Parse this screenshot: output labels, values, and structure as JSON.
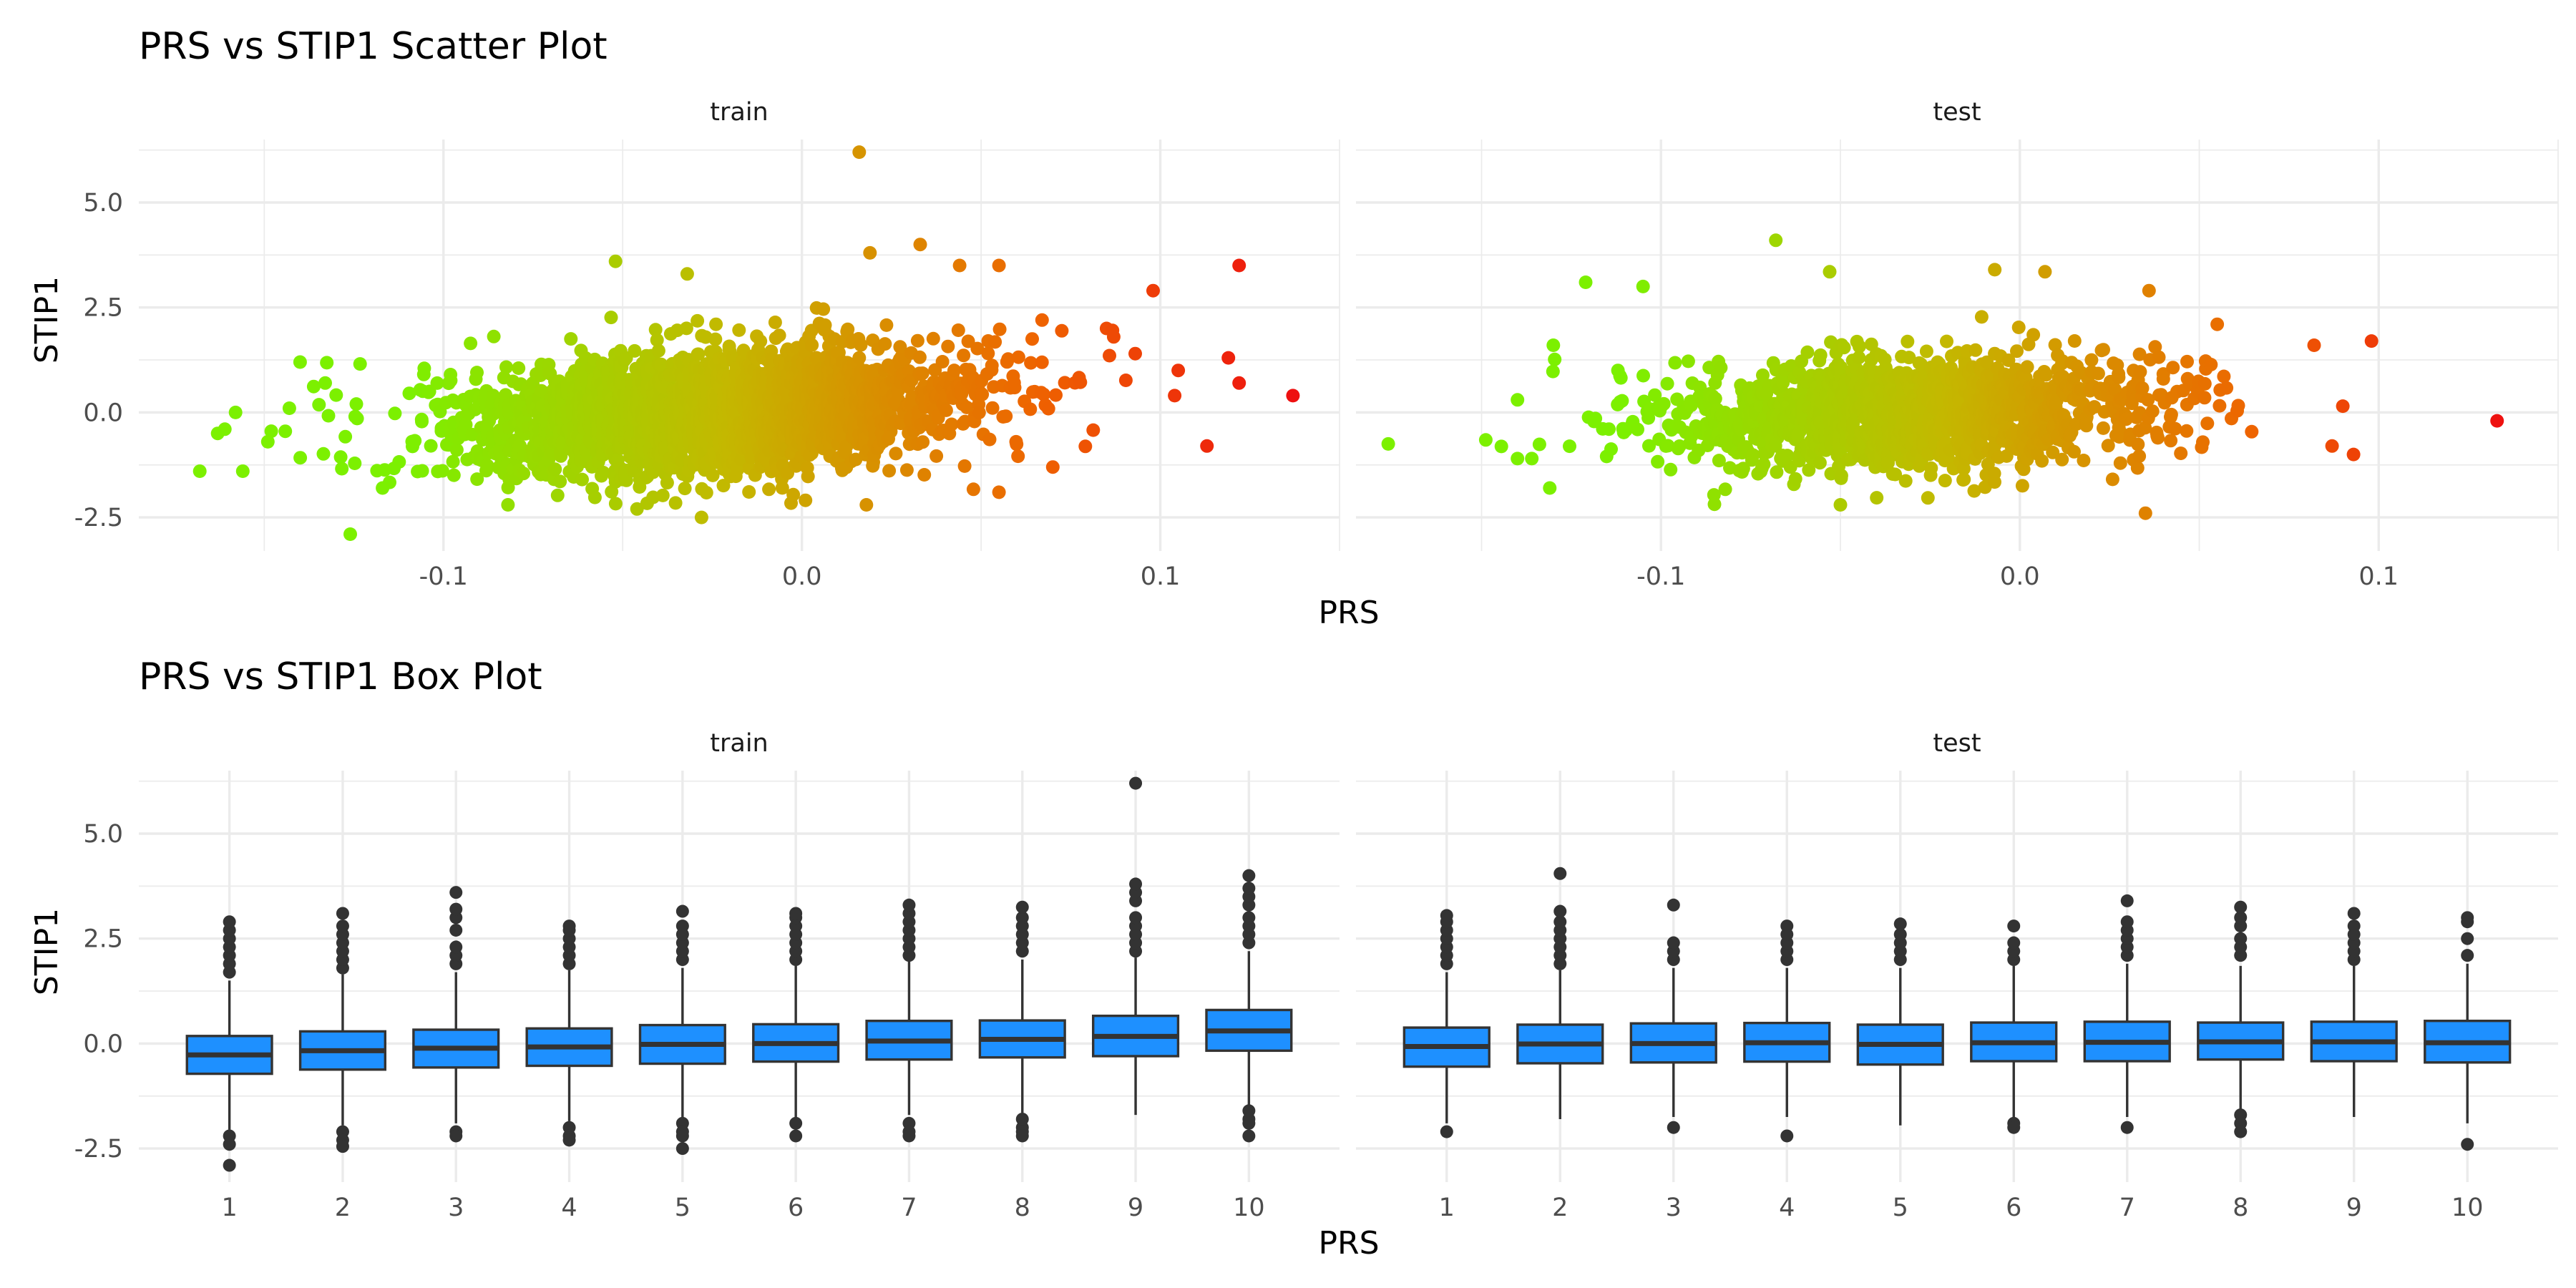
{
  "chart_data": [
    {
      "type": "scatter",
      "title": "PRS vs STIP1 Scatter Plot",
      "xlabel": "PRS",
      "ylabel": "STIP1",
      "xlim": [
        -0.185,
        0.15
      ],
      "ylim": [
        -3.3,
        6.5
      ],
      "x_ticks": [
        -0.1,
        0.0,
        0.1
      ],
      "x_tick_labels": [
        "-0.1",
        "0.0",
        "0.1"
      ],
      "y_ticks": [
        -2.5,
        0.0,
        2.5,
        5.0
      ],
      "y_tick_labels": [
        "-2.5",
        "0.0",
        "2.5",
        "5.0"
      ],
      "grid": true,
      "color_scale": {
        "low": "#7cf000",
        "mid": "#c4b800",
        "high": "#ee6400",
        "max": "#ee1010"
      },
      "panels": [
        {
          "name": "train",
          "cloud": {
            "center_x": -0.025,
            "sd_x": 0.036,
            "center_y": 0.0,
            "sd_y": 0.75,
            "slope": 6.0,
            "n": 2600
          },
          "points": [
            [
              0.016,
              6.2
            ],
            [
              -0.052,
              3.6
            ],
            [
              0.019,
              3.8
            ],
            [
              0.033,
              4.0
            ],
            [
              0.044,
              3.5
            ],
            [
              0.055,
              3.5
            ],
            [
              -0.032,
              3.3
            ],
            [
              0.122,
              3.5
            ],
            [
              0.098,
              2.9
            ],
            [
              -0.14,
              1.2
            ],
            [
              0.119,
              1.3
            ],
            [
              0.122,
              0.7
            ],
            [
              0.137,
              0.4
            ],
            [
              0.113,
              -0.8
            ],
            [
              0.104,
              0.4
            ],
            [
              -0.168,
              -1.4
            ],
            [
              -0.161,
              -0.4
            ],
            [
              -0.163,
              -0.5
            ],
            [
              -0.158,
              0.0
            ],
            [
              -0.156,
              -1.4
            ],
            [
              -0.126,
              -2.9
            ],
            [
              -0.028,
              -2.5
            ],
            [
              -0.046,
              -2.3
            ],
            [
              0.018,
              -2.2
            ],
            [
              0.055,
              -1.9
            ],
            [
              0.07,
              -1.3
            ],
            [
              0.087,
              1.8
            ],
            [
              0.093,
              1.4
            ],
            [
              0.105,
              1.0
            ],
            [
              -0.143,
              0.1
            ],
            [
              -0.149,
              -0.7
            ],
            [
              -0.133,
              0.7
            ],
            [
              -0.117,
              -1.8
            ],
            [
              -0.082,
              -2.2
            ],
            [
              0.067,
              2.2
            ],
            [
              0.085,
              2.0
            ]
          ]
        },
        {
          "name": "test",
          "cloud": {
            "center_x": -0.03,
            "sd_x": 0.036,
            "center_y": 0.0,
            "sd_y": 0.65,
            "slope": 3.0,
            "n": 1500
          },
          "points": [
            [
              -0.176,
              -0.75
            ],
            [
              0.133,
              -0.2
            ],
            [
              0.098,
              1.7
            ],
            [
              -0.068,
              4.1
            ],
            [
              -0.053,
              3.35
            ],
            [
              -0.007,
              3.4
            ],
            [
              0.007,
              3.35
            ],
            [
              -0.121,
              3.1
            ],
            [
              0.036,
              2.9
            ],
            [
              0.055,
              2.1
            ],
            [
              0.082,
              1.6
            ],
            [
              0.087,
              -0.8
            ],
            [
              0.093,
              -1.0
            ],
            [
              0.035,
              -2.4
            ],
            [
              -0.05,
              -2.2
            ],
            [
              -0.131,
              -1.8
            ],
            [
              -0.14,
              -1.1
            ],
            [
              -0.136,
              -1.1
            ],
            [
              -0.14,
              0.3
            ],
            [
              -0.13,
              1.6
            ],
            [
              -0.112,
              1.0
            ],
            [
              -0.105,
              3.0
            ],
            [
              0.09,
              0.15
            ]
          ]
        }
      ]
    },
    {
      "type": "box",
      "title": "PRS vs STIP1 Box Plot",
      "xlabel": "PRS",
      "ylabel": "STIP1",
      "categories": [
        "1",
        "2",
        "3",
        "4",
        "5",
        "6",
        "7",
        "8",
        "9",
        "10"
      ],
      "ylim": [
        -3.3,
        6.5
      ],
      "y_ticks": [
        -2.5,
        0.0,
        2.5,
        5.0
      ],
      "y_tick_labels": [
        "-2.5",
        "0.0",
        "2.5",
        "5.0"
      ],
      "grid": true,
      "box_fill": "#1e90ff",
      "outline_color": "#333333",
      "series": [
        {
          "name": "train",
          "boxes": [
            {
              "q1": -0.72,
              "median": -0.27,
              "q3": 0.18,
              "lo": -2.05,
              "hi": 1.5,
              "outliers": [
                1.7,
                1.9,
                2.1,
                2.3,
                2.5,
                2.7,
                2.9,
                -2.2,
                -2.4,
                -2.9
              ]
            },
            {
              "q1": -0.62,
              "median": -0.17,
              "q3": 0.29,
              "lo": -1.95,
              "hi": 1.65,
              "outliers": [
                1.8,
                2.0,
                2.2,
                2.4,
                2.6,
                2.8,
                3.1,
                -2.1,
                -2.3,
                -2.45
              ]
            },
            {
              "q1": -0.57,
              "median": -0.11,
              "q3": 0.33,
              "lo": -1.9,
              "hi": 1.7,
              "outliers": [
                1.9,
                2.1,
                2.3,
                2.7,
                3.0,
                3.2,
                3.6,
                -2.1,
                -2.2
              ]
            },
            {
              "q1": -0.53,
              "median": -0.08,
              "q3": 0.36,
              "lo": -1.85,
              "hi": 1.75,
              "outliers": [
                1.9,
                2.1,
                2.3,
                2.5,
                2.7,
                2.8,
                -2.0,
                -2.2,
                -2.3
              ]
            },
            {
              "q1": -0.48,
              "median": -0.02,
              "q3": 0.44,
              "lo": -1.8,
              "hi": 1.8,
              "outliers": [
                2.0,
                2.2,
                2.4,
                2.6,
                2.8,
                3.15,
                -1.9,
                -2.1,
                -2.2,
                -2.5
              ]
            },
            {
              "q1": -0.43,
              "median": 0.0,
              "q3": 0.46,
              "lo": -1.75,
              "hi": 1.85,
              "outliers": [
                2.0,
                2.2,
                2.4,
                2.6,
                2.8,
                3.0,
                3.1,
                -1.9,
                -2.2
              ]
            },
            {
              "q1": -0.38,
              "median": 0.06,
              "q3": 0.54,
              "lo": -1.7,
              "hi": 1.95,
              "outliers": [
                2.1,
                2.3,
                2.5,
                2.7,
                2.9,
                3.1,
                3.3,
                -1.9,
                -2.1,
                -2.2
              ]
            },
            {
              "q1": -0.33,
              "median": 0.1,
              "q3": 0.55,
              "lo": -1.65,
              "hi": 2.0,
              "outliers": [
                2.2,
                2.4,
                2.6,
                2.8,
                3.0,
                3.25,
                -1.8,
                -2.0,
                -2.1,
                -2.2
              ]
            },
            {
              "q1": -0.3,
              "median": 0.17,
              "q3": 0.66,
              "lo": -1.7,
              "hi": 2.05,
              "outliers": [
                2.2,
                2.4,
                2.6,
                2.8,
                3.0,
                3.4,
                3.6,
                3.8,
                6.2
              ]
            },
            {
              "q1": -0.17,
              "median": 0.3,
              "q3": 0.8,
              "lo": -1.5,
              "hi": 2.2,
              "outliers": [
                2.4,
                2.6,
                2.8,
                3.0,
                3.3,
                3.5,
                3.7,
                4.0,
                -1.6,
                -1.8,
                -1.9,
                -2.2
              ]
            }
          ]
        },
        {
          "name": "test",
          "boxes": [
            {
              "q1": -0.55,
              "median": -0.07,
              "q3": 0.38,
              "lo": -1.9,
              "hi": 1.7,
              "outliers": [
                1.9,
                2.1,
                2.3,
                2.5,
                2.7,
                2.9,
                3.05,
                -2.1
              ]
            },
            {
              "q1": -0.47,
              "median": -0.01,
              "q3": 0.45,
              "lo": -1.8,
              "hi": 1.75,
              "outliers": [
                1.9,
                2.1,
                2.3,
                2.5,
                2.7,
                2.9,
                3.15,
                4.05
              ]
            },
            {
              "q1": -0.45,
              "median": 0.0,
              "q3": 0.48,
              "lo": -1.75,
              "hi": 1.8,
              "outliers": [
                2.0,
                2.2,
                2.4,
                3.3,
                -2.0
              ]
            },
            {
              "q1": -0.43,
              "median": 0.02,
              "q3": 0.49,
              "lo": -1.75,
              "hi": 1.8,
              "outliers": [
                2.0,
                2.2,
                2.4,
                2.6,
                2.8,
                -2.2
              ]
            },
            {
              "q1": -0.5,
              "median": -0.02,
              "q3": 0.45,
              "lo": -1.95,
              "hi": 1.8,
              "outliers": [
                2.0,
                2.2,
                2.4,
                2.6,
                2.85
              ]
            },
            {
              "q1": -0.42,
              "median": 0.02,
              "q3": 0.5,
              "lo": -1.75,
              "hi": 1.85,
              "outliers": [
                2.0,
                2.2,
                2.4,
                2.8,
                -1.9,
                -2.0
              ]
            },
            {
              "q1": -0.42,
              "median": 0.03,
              "q3": 0.52,
              "lo": -1.75,
              "hi": 1.9,
              "outliers": [
                2.1,
                2.3,
                2.5,
                2.7,
                2.9,
                3.4,
                -2.0
              ]
            },
            {
              "q1": -0.38,
              "median": 0.04,
              "q3": 0.5,
              "lo": -1.65,
              "hi": 1.85,
              "outliers": [
                2.1,
                2.3,
                2.5,
                2.8,
                3.0,
                3.25,
                -1.7,
                -1.9,
                -2.1
              ]
            },
            {
              "q1": -0.42,
              "median": 0.04,
              "q3": 0.52,
              "lo": -1.75,
              "hi": 1.85,
              "outliers": [
                2.0,
                2.2,
                2.4,
                2.6,
                2.8,
                3.1
              ]
            },
            {
              "q1": -0.45,
              "median": 0.02,
              "q3": 0.54,
              "lo": -1.9,
              "hi": 1.9,
              "outliers": [
                2.1,
                2.5,
                2.9,
                3.0,
                -2.4
              ]
            }
          ]
        }
      ]
    }
  ]
}
